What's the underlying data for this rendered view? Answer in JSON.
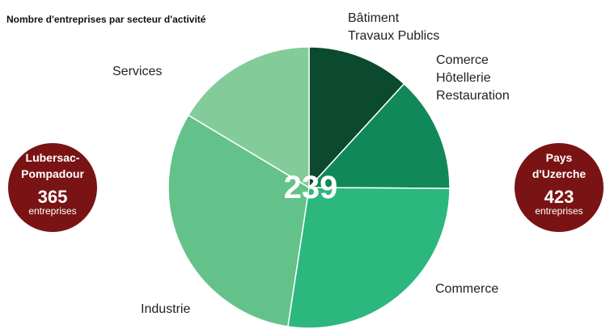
{
  "chart_data": {
    "type": "pie",
    "title": "Nombre d'entreprises par secteur d'activité",
    "total": "239",
    "slices": [
      {
        "label": "Bâtiment\nTravaux Publics",
        "value": 11.8,
        "color": "#0b4a2e"
      },
      {
        "label": "Comerce\nHôtellerie\nRestauration",
        "value": 13.3,
        "color": "#11885a"
      },
      {
        "label": "Commerce",
        "value": 27.3,
        "color": "#2bb77e"
      },
      {
        "label": "Industrie",
        "value": 31.2,
        "color": "#63c289"
      },
      {
        "label": "Services",
        "value": 16.4,
        "color": "#83cb99"
      }
    ]
  },
  "bubbles": [
    {
      "name": "Lubersac-\nPompadour",
      "count": "365",
      "unit": "entreprises"
    },
    {
      "name": "Pays\nd'Uzerche",
      "count": "423",
      "unit": "entreprises"
    }
  ]
}
